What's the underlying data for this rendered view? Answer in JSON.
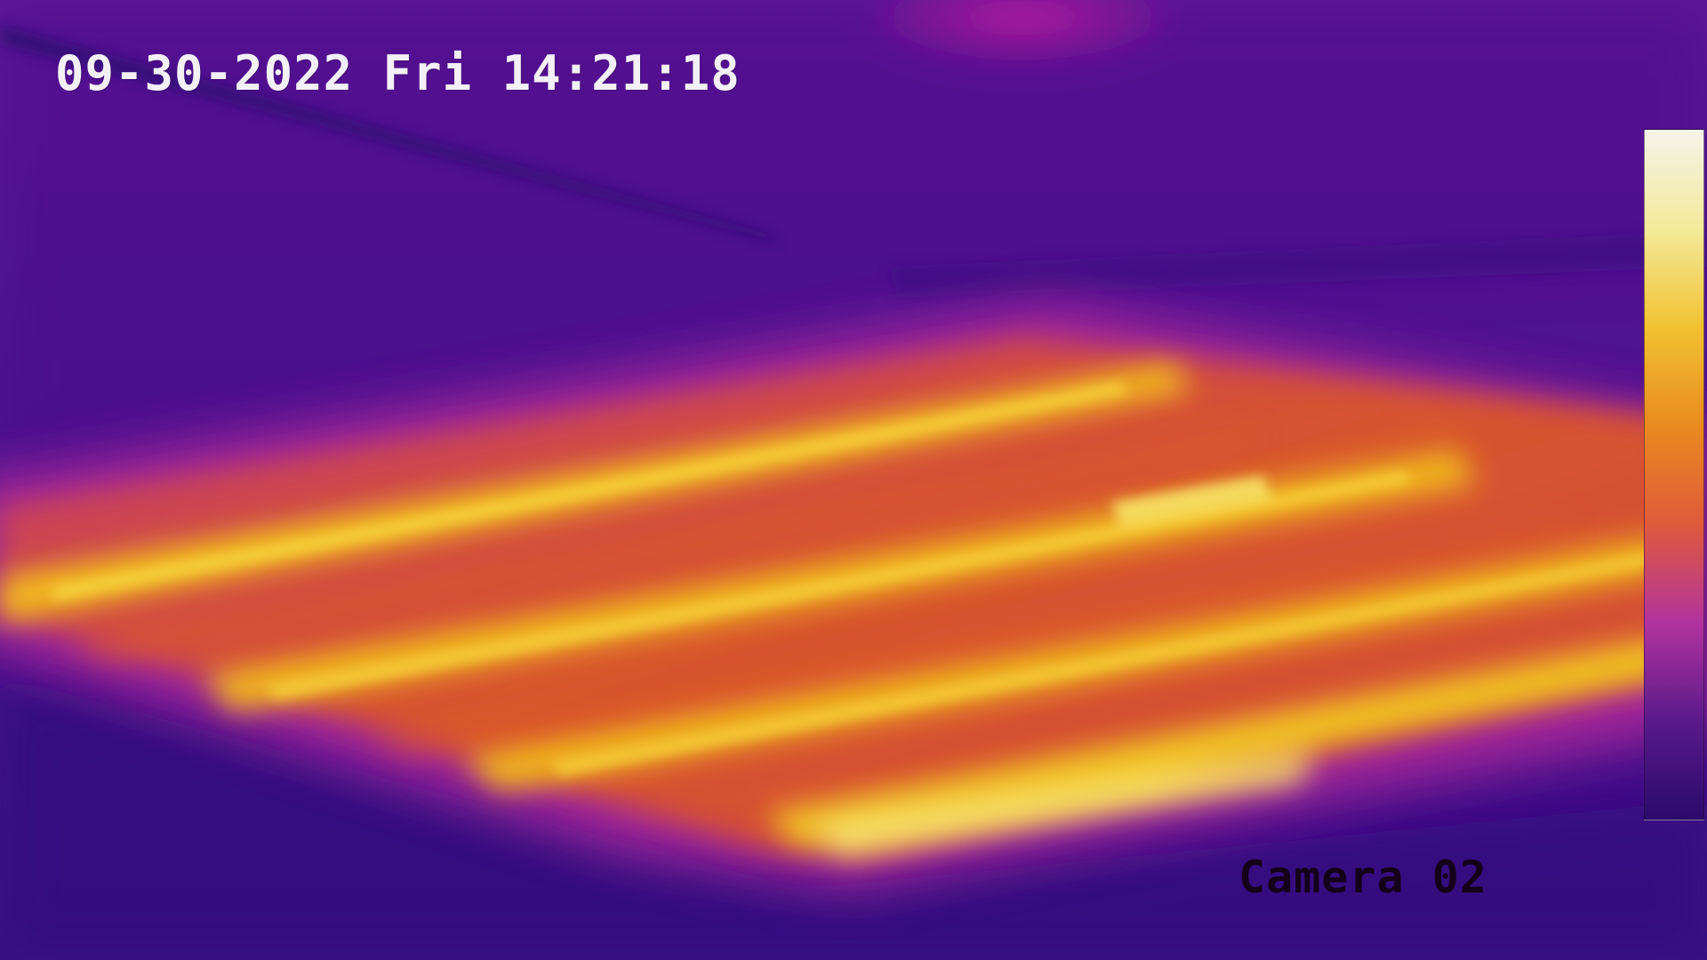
{
  "overlay": {
    "timestamp": "09-30-2022 Fri 14:21:18",
    "camera_name": "Camera 02"
  },
  "palette": {
    "name": "ironbow",
    "colors": [
      "#f5f3ea",
      "#f3ea9a",
      "#f1c232",
      "#e98a1f",
      "#e05a3a",
      "#b2339e",
      "#5a1a8a",
      "#2a0a6a"
    ]
  },
  "scene_colors": {
    "background": "#4a108f",
    "warm_surface": "#d95a2a",
    "hot_stripe": "#f5c21c",
    "edge_glow": "#c4309f"
  }
}
